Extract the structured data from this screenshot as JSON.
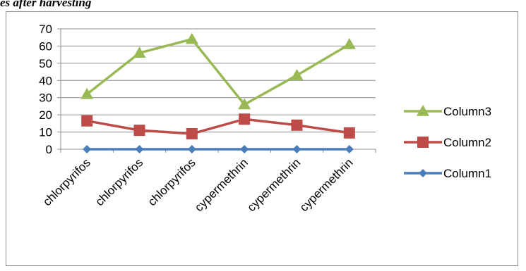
{
  "caption": "es after harvesting",
  "chart_data": {
    "type": "line",
    "title": "",
    "xlabel": "",
    "ylabel": "",
    "categories": [
      "chlorpyrifos",
      "chlorpyrifos",
      "chlorpyrifos",
      "cypermethrin",
      "cypermethrin",
      "cypermethrin"
    ],
    "ylim": [
      0,
      70
    ],
    "yticks": [
      0,
      10,
      20,
      30,
      40,
      50,
      60,
      70
    ],
    "grid": true,
    "legend_position": "right",
    "series": [
      {
        "name": "Column1",
        "values": [
          0,
          0,
          0,
          0,
          0,
          0
        ],
        "color": "#4a7ebb",
        "marker": "diamond"
      },
      {
        "name": "Column2",
        "values": [
          16.5,
          11,
          9,
          17.5,
          14,
          9.5
        ],
        "color": "#be4b48",
        "marker": "square"
      },
      {
        "name": "Column3",
        "values": [
          32,
          56,
          64,
          26,
          43,
          61
        ],
        "color": "#98b954",
        "marker": "triangle"
      }
    ],
    "legend_order": [
      "Column3",
      "Column2",
      "Column1"
    ]
  }
}
